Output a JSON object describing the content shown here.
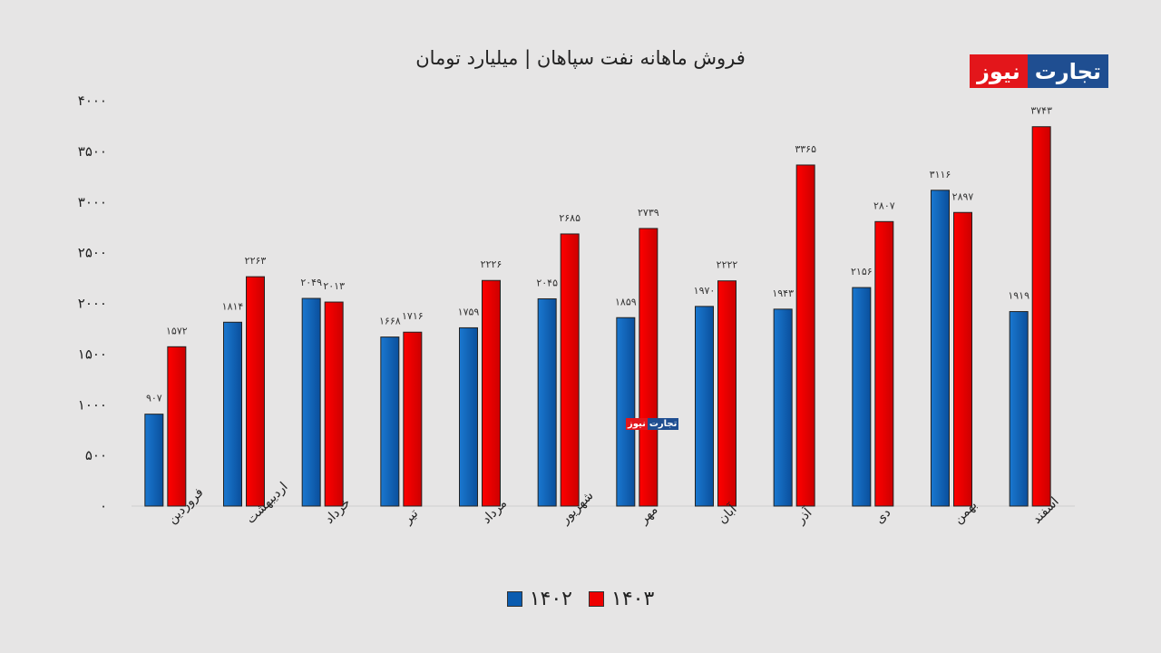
{
  "chart_data": {
    "type": "bar",
    "title": "فروش ماهانه نفت سپاهان | میلیارد تومان",
    "categories": [
      "فروردین",
      "اردیبهشت",
      "خرداد",
      "تیر",
      "مرداد",
      "شهریور",
      "مهر",
      "آبان",
      "آذر",
      "دی",
      "بهمن",
      "اسفند"
    ],
    "series": [
      {
        "name": "۱۴۰۲",
        "color": "#0a5cb0",
        "values": [
          907,
          1814,
          2049,
          1668,
          1759,
          2045,
          1859,
          1970,
          1943,
          2156,
          3116,
          1919
        ],
        "labels": [
          "۹۰۷",
          "۱۸۱۴",
          "۲۰۴۹",
          "۱۶۶۸",
          "۱۷۵۹",
          "۲۰۴۵",
          "۱۸۵۹",
          "۱۹۷۰",
          "۱۹۴۳",
          "۲۱۵۶",
          "۳۱۱۶",
          "۱۹۱۹"
        ]
      },
      {
        "name": "۱۴۰۳",
        "color": "#ee0000",
        "values": [
          1572,
          2263,
          2013,
          1716,
          2226,
          2685,
          2739,
          2222,
          3365,
          2807,
          2897,
          3743
        ],
        "labels": [
          "۱۵۷۲",
          "۲۲۶۳",
          "۲۰۱۳",
          "۱۷۱۶",
          "۲۲۲۶",
          "۲۶۸۵",
          "۲۷۳۹",
          "۲۲۲۲",
          "۳۳۶۵",
          "۲۸۰۷",
          "۲۸۹۷",
          "۳۷۴۳"
        ]
      }
    ],
    "ylim": [
      0,
      4000
    ],
    "yticks": [
      0,
      500,
      1000,
      1500,
      2000,
      2500,
      3000,
      3500,
      4000
    ],
    "ytick_labels": [
      "۰",
      "۵۰۰",
      "۱۰۰۰",
      "۱۵۰۰",
      "۲۰۰۰",
      "۲۵۰۰",
      "۳۰۰۰",
      "۳۵۰۰",
      "۴۰۰۰"
    ],
    "grid": false,
    "legend_position": "bottom"
  },
  "logo": {
    "part1": "تجارت",
    "part2": "نیوز"
  }
}
